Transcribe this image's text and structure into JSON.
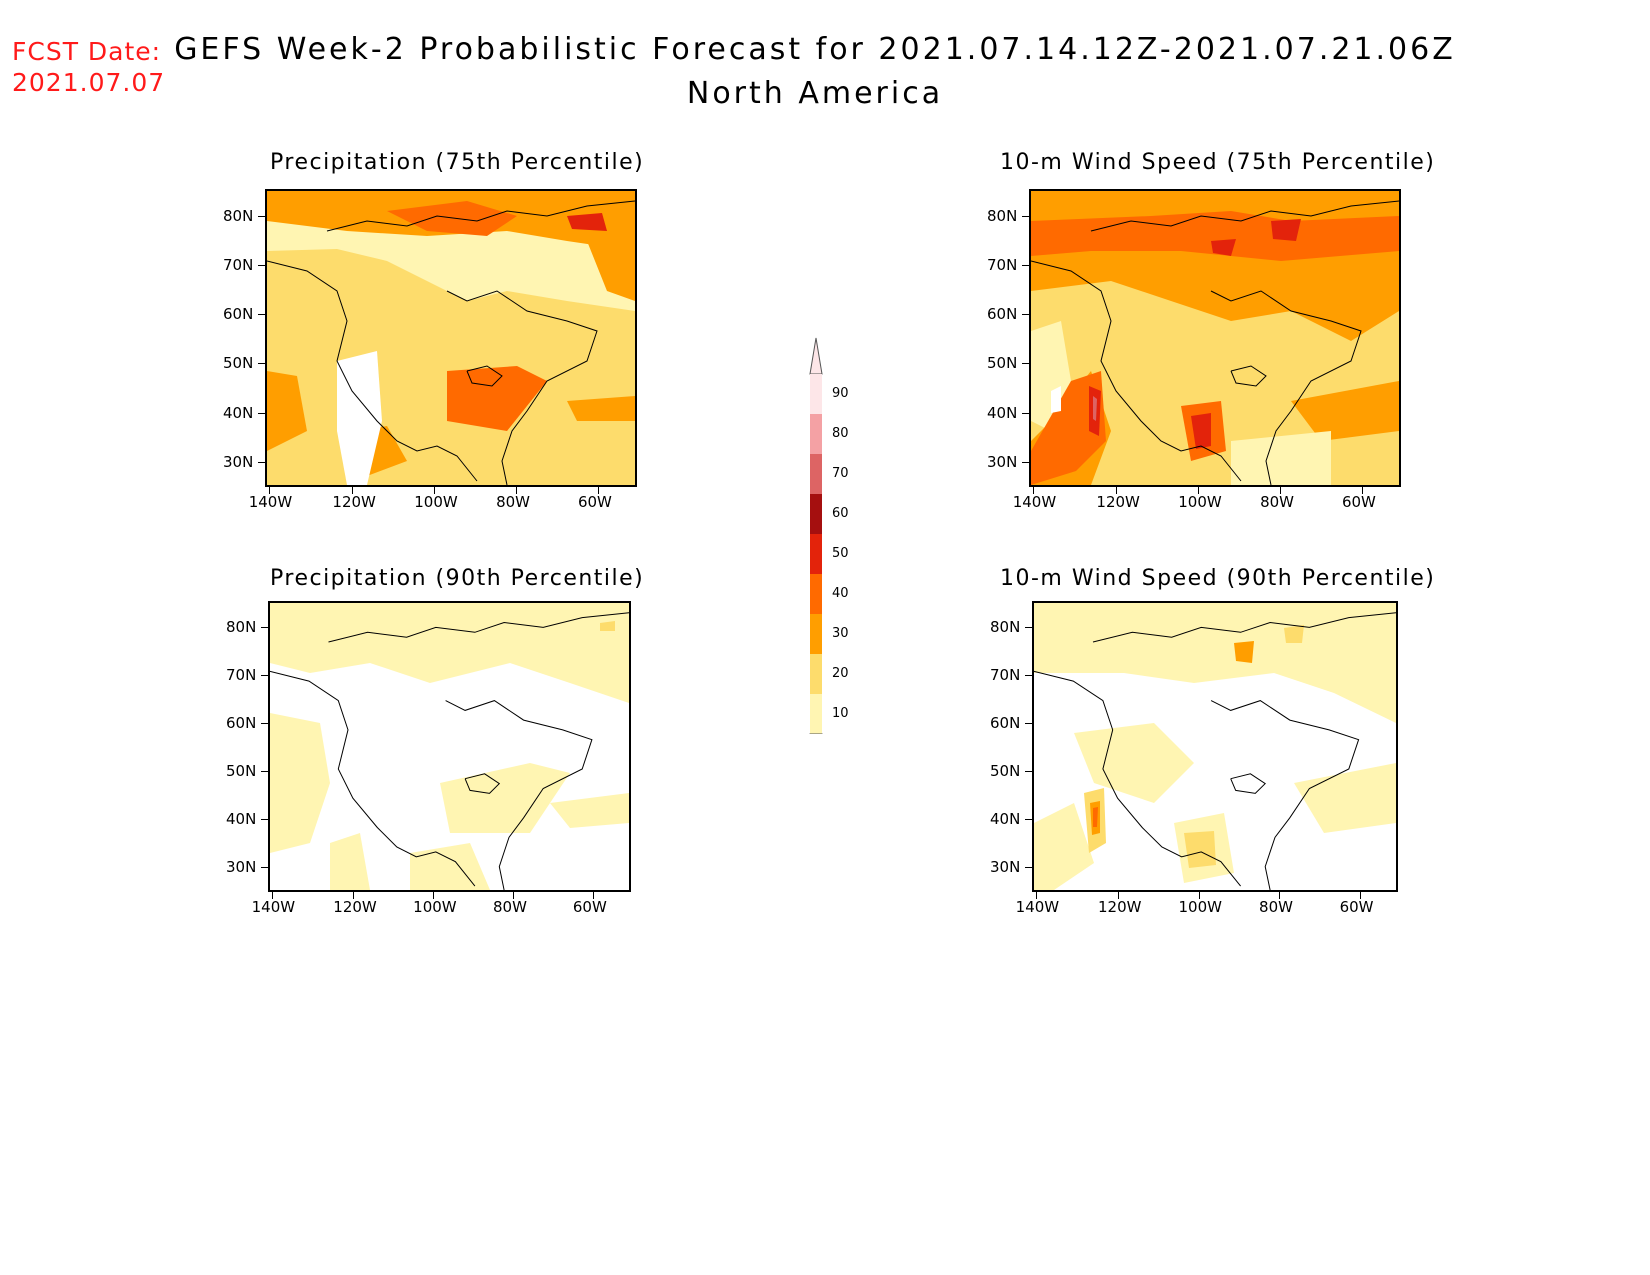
{
  "forecast_date": {
    "label": "FCST Date:",
    "value": "2021.07.07"
  },
  "title": {
    "main": "GEFS Week-2 Probabilistic Forecast for 2021.07.14.12Z-2021.07.21.06Z",
    "region": "North America"
  },
  "panels": [
    {
      "id": "precip-75",
      "title": "Precipitation (75th Percentile)"
    },
    {
      "id": "wind-75",
      "title": "10-m Wind Speed (75th Percentile)"
    },
    {
      "id": "precip-90",
      "title": "Precipitation (90th Percentile)"
    },
    {
      "id": "wind-90",
      "title": "10-m Wind Speed (90th Percentile)"
    }
  ],
  "axes": {
    "lat_labels": [
      "80N",
      "70N",
      "60N",
      "50N",
      "40N",
      "30N"
    ],
    "lon_labels": [
      "140W",
      "120W",
      "100W",
      "80W",
      "60W"
    ]
  },
  "colorbar": {
    "labels": [
      "90",
      "80",
      "70",
      "60",
      "50",
      "40",
      "30",
      "20",
      "10"
    ],
    "colors": [
      "#fde6e8",
      "#f4a1a4",
      "#dd6464",
      "#a50f0f",
      "#e3230b",
      "#ff6a00",
      "#ff9e00",
      "#fddc6c",
      "#fff5b2"
    ]
  },
  "palette": {
    "p10": "#fff5b2",
    "p20": "#fddc6c",
    "p30": "#ff9e00",
    "p40": "#ff6a00",
    "p50": "#e3230b",
    "p60": "#a50f0f",
    "p70": "#dd6464",
    "p80": "#f4a1a4",
    "white": "#ffffff",
    "fcst_text": "#ff1a1a"
  }
}
